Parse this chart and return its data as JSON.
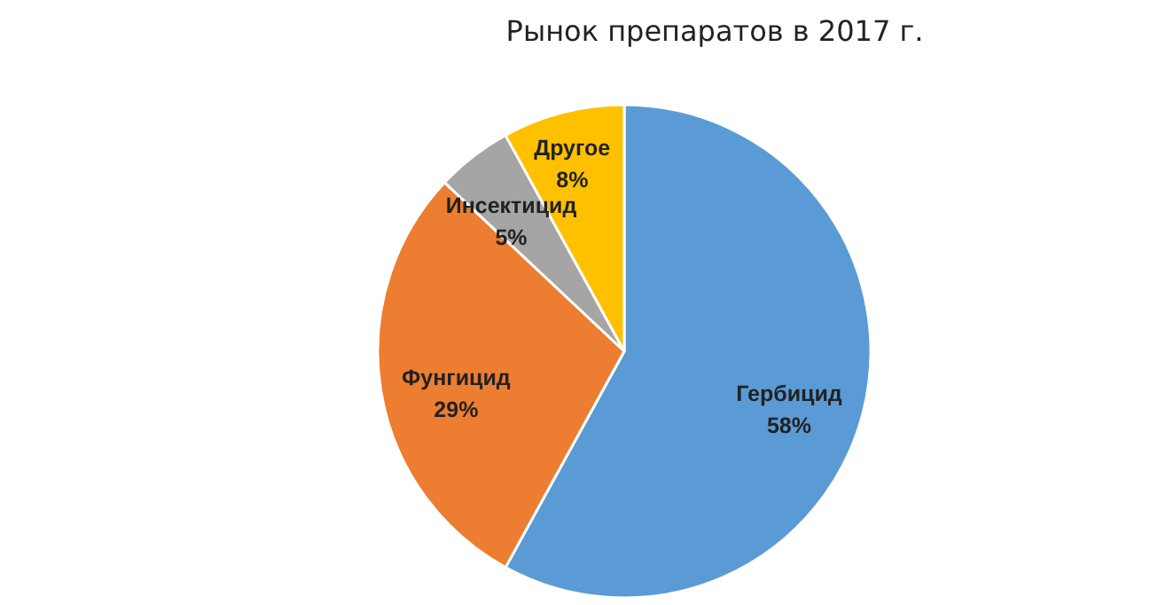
{
  "chart_data": {
    "type": "pie",
    "title": "Рынок препаратов в 2017 г.",
    "categories": [
      "Гербицид",
      "Фунгицид",
      "Инсектицид",
      "Другое"
    ],
    "values": [
      58,
      29,
      5,
      8
    ],
    "colors": [
      "#5b9bd5",
      "#ed7d31",
      "#a5a5a5",
      "#ffc000"
    ],
    "value_labels": [
      "58%",
      "29%",
      "5%",
      "8%"
    ],
    "legend": false
  }
}
